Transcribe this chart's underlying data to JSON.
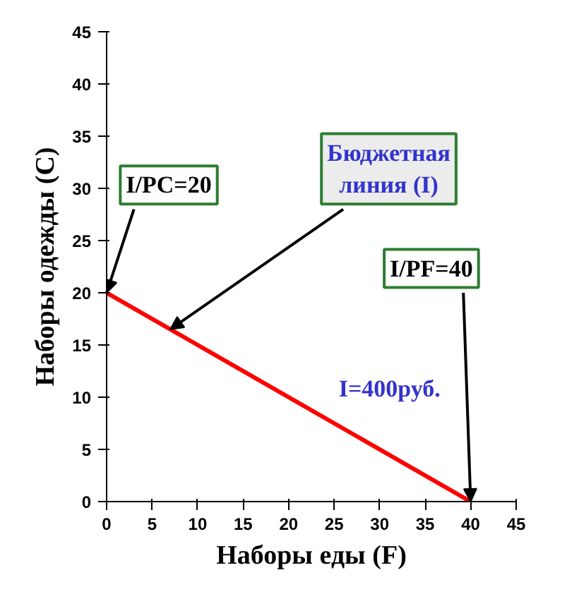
{
  "chart_data": {
    "type": "line",
    "xlabel": "Наборы еды (F)",
    "ylabel": "Наборы одежды (C)",
    "x": [
      0,
      40
    ],
    "series": [
      {
        "color": "#ff0000",
        "values": [
          20,
          0
        ]
      }
    ],
    "xlim": [
      0,
      45
    ],
    "ylim": [
      0,
      45
    ],
    "xticks": [
      0,
      5,
      10,
      15,
      20,
      25,
      30,
      35,
      40,
      45
    ],
    "yticks": [
      0,
      5,
      10,
      15,
      20,
      25,
      30,
      35,
      40,
      45
    ],
    "grid": false,
    "marker": "none",
    "line_style": "solid",
    "annotations": [
      {
        "text": "I/PC=20",
        "x": 0,
        "y": 20
      },
      {
        "text": "Бюджетная линия (I)",
        "x": 7,
        "y": 16.5
      },
      {
        "text": "I/PF=40",
        "x": 40,
        "y": 0
      },
      "I=400руб."
    ]
  }
}
